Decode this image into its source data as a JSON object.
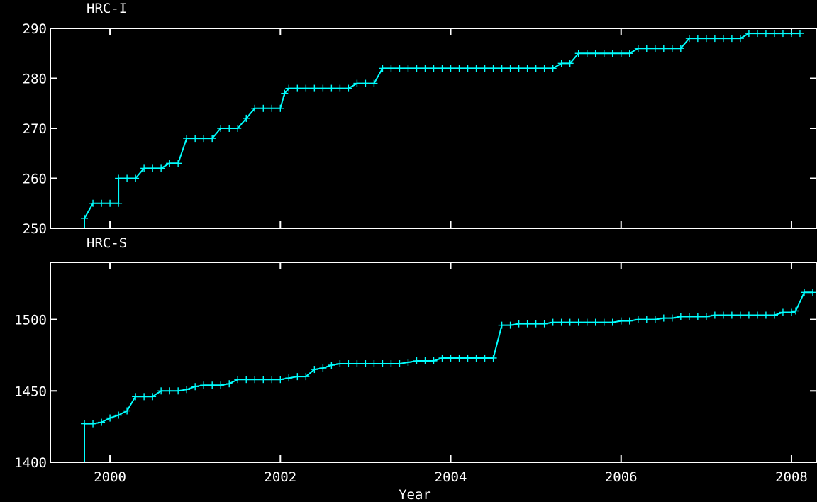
{
  "colors": {
    "background": "#000000",
    "axes": "#ffffff",
    "series": "#00ffff"
  },
  "chart_data": [
    {
      "type": "line",
      "title": "HRC-I",
      "xlabel": "",
      "ylabel": "",
      "xlim": [
        1999.3,
        2008.3
      ],
      "ylim": [
        250,
        290
      ],
      "yticks": [
        250,
        260,
        270,
        280,
        290
      ],
      "xticks": [
        2000,
        2002,
        2004,
        2006,
        2008
      ],
      "xtick_labels": [
        "",
        "",
        "",
        "",
        ""
      ],
      "grid": false,
      "marker": "plus",
      "series": [
        {
          "color": "#00ffff",
          "points": [
            [
              1999.7,
              250
            ],
            [
              1999.7,
              252
            ],
            [
              1999.8,
              255
            ],
            [
              1999.9,
              255
            ],
            [
              2000.0,
              255
            ],
            [
              2000.1,
              255
            ],
            [
              2000.1,
              260
            ],
            [
              2000.2,
              260
            ],
            [
              2000.3,
              260
            ],
            [
              2000.4,
              262
            ],
            [
              2000.5,
              262
            ],
            [
              2000.6,
              262
            ],
            [
              2000.7,
              263
            ],
            [
              2000.8,
              263
            ],
            [
              2000.9,
              268
            ],
            [
              2001.0,
              268
            ],
            [
              2001.1,
              268
            ],
            [
              2001.2,
              268
            ],
            [
              2001.3,
              270
            ],
            [
              2001.4,
              270
            ],
            [
              2001.5,
              270
            ],
            [
              2001.6,
              272
            ],
            [
              2001.7,
              274
            ],
            [
              2001.8,
              274
            ],
            [
              2001.9,
              274
            ],
            [
              2002.0,
              274
            ],
            [
              2002.05,
              277
            ],
            [
              2002.1,
              278
            ],
            [
              2002.2,
              278
            ],
            [
              2002.3,
              278
            ],
            [
              2002.4,
              278
            ],
            [
              2002.5,
              278
            ],
            [
              2002.6,
              278
            ],
            [
              2002.7,
              278
            ],
            [
              2002.8,
              278
            ],
            [
              2002.9,
              279
            ],
            [
              2003.0,
              279
            ],
            [
              2003.1,
              279
            ],
            [
              2003.2,
              282
            ],
            [
              2003.3,
              282
            ],
            [
              2003.4,
              282
            ],
            [
              2003.5,
              282
            ],
            [
              2003.6,
              282
            ],
            [
              2003.7,
              282
            ],
            [
              2003.8,
              282
            ],
            [
              2003.9,
              282
            ],
            [
              2004.0,
              282
            ],
            [
              2004.1,
              282
            ],
            [
              2004.2,
              282
            ],
            [
              2004.3,
              282
            ],
            [
              2004.4,
              282
            ],
            [
              2004.5,
              282
            ],
            [
              2004.6,
              282
            ],
            [
              2004.7,
              282
            ],
            [
              2004.8,
              282
            ],
            [
              2004.9,
              282
            ],
            [
              2005.0,
              282
            ],
            [
              2005.1,
              282
            ],
            [
              2005.2,
              282
            ],
            [
              2005.3,
              283
            ],
            [
              2005.4,
              283
            ],
            [
              2005.5,
              285
            ],
            [
              2005.6,
              285
            ],
            [
              2005.7,
              285
            ],
            [
              2005.8,
              285
            ],
            [
              2005.9,
              285
            ],
            [
              2006.0,
              285
            ],
            [
              2006.1,
              285
            ],
            [
              2006.2,
              286
            ],
            [
              2006.3,
              286
            ],
            [
              2006.4,
              286
            ],
            [
              2006.5,
              286
            ],
            [
              2006.6,
              286
            ],
            [
              2006.7,
              286
            ],
            [
              2006.8,
              288
            ],
            [
              2006.9,
              288
            ],
            [
              2007.0,
              288
            ],
            [
              2007.1,
              288
            ],
            [
              2007.2,
              288
            ],
            [
              2007.3,
              288
            ],
            [
              2007.4,
              288
            ],
            [
              2007.5,
              289
            ],
            [
              2007.6,
              289
            ],
            [
              2007.7,
              289
            ],
            [
              2007.8,
              289
            ],
            [
              2007.9,
              289
            ],
            [
              2008.0,
              289
            ],
            [
              2008.1,
              289
            ]
          ]
        }
      ]
    },
    {
      "type": "line",
      "title": "HRC-S",
      "xlabel": "Year",
      "ylabel": "",
      "xlim": [
        1999.3,
        2008.3
      ],
      "ylim": [
        1400,
        1540
      ],
      "yticks": [
        1400,
        1450,
        1500
      ],
      "xticks": [
        2000,
        2002,
        2004,
        2006,
        2008
      ],
      "xtick_labels": [
        "2000",
        "2002",
        "2004",
        "2006",
        "2008"
      ],
      "grid": false,
      "marker": "plus",
      "series": [
        {
          "color": "#00ffff",
          "points": [
            [
              1999.7,
              1400
            ],
            [
              1999.7,
              1427
            ],
            [
              1999.8,
              1427
            ],
            [
              1999.9,
              1428
            ],
            [
              2000.0,
              1431
            ],
            [
              2000.1,
              1433
            ],
            [
              2000.2,
              1436
            ],
            [
              2000.3,
              1446
            ],
            [
              2000.4,
              1446
            ],
            [
              2000.5,
              1446
            ],
            [
              2000.6,
              1450
            ],
            [
              2000.7,
              1450
            ],
            [
              2000.8,
              1450
            ],
            [
              2000.9,
              1451
            ],
            [
              2001.0,
              1453
            ],
            [
              2001.1,
              1454
            ],
            [
              2001.2,
              1454
            ],
            [
              2001.3,
              1454
            ],
            [
              2001.4,
              1455
            ],
            [
              2001.5,
              1458
            ],
            [
              2001.6,
              1458
            ],
            [
              2001.7,
              1458
            ],
            [
              2001.8,
              1458
            ],
            [
              2001.9,
              1458
            ],
            [
              2002.0,
              1458
            ],
            [
              2002.1,
              1459
            ],
            [
              2002.2,
              1460
            ],
            [
              2002.3,
              1460
            ],
            [
              2002.4,
              1465
            ],
            [
              2002.5,
              1466
            ],
            [
              2002.6,
              1468
            ],
            [
              2002.7,
              1469
            ],
            [
              2002.8,
              1469
            ],
            [
              2002.9,
              1469
            ],
            [
              2003.0,
              1469
            ],
            [
              2003.1,
              1469
            ],
            [
              2003.2,
              1469
            ],
            [
              2003.3,
              1469
            ],
            [
              2003.4,
              1469
            ],
            [
              2003.5,
              1470
            ],
            [
              2003.6,
              1471
            ],
            [
              2003.7,
              1471
            ],
            [
              2003.8,
              1471
            ],
            [
              2003.9,
              1473
            ],
            [
              2004.0,
              1473
            ],
            [
              2004.1,
              1473
            ],
            [
              2004.2,
              1473
            ],
            [
              2004.3,
              1473
            ],
            [
              2004.4,
              1473
            ],
            [
              2004.5,
              1473
            ],
            [
              2004.6,
              1496
            ],
            [
              2004.7,
              1496
            ],
            [
              2004.8,
              1497
            ],
            [
              2004.9,
              1497
            ],
            [
              2005.0,
              1497
            ],
            [
              2005.1,
              1497
            ],
            [
              2005.2,
              1498
            ],
            [
              2005.3,
              1498
            ],
            [
              2005.4,
              1498
            ],
            [
              2005.5,
              1498
            ],
            [
              2005.6,
              1498
            ],
            [
              2005.7,
              1498
            ],
            [
              2005.8,
              1498
            ],
            [
              2005.9,
              1498
            ],
            [
              2006.0,
              1499
            ],
            [
              2006.1,
              1499
            ],
            [
              2006.2,
              1500
            ],
            [
              2006.3,
              1500
            ],
            [
              2006.4,
              1500
            ],
            [
              2006.5,
              1501
            ],
            [
              2006.6,
              1501
            ],
            [
              2006.7,
              1502
            ],
            [
              2006.8,
              1502
            ],
            [
              2006.9,
              1502
            ],
            [
              2007.0,
              1502
            ],
            [
              2007.1,
              1503
            ],
            [
              2007.2,
              1503
            ],
            [
              2007.3,
              1503
            ],
            [
              2007.4,
              1503
            ],
            [
              2007.5,
              1503
            ],
            [
              2007.6,
              1503
            ],
            [
              2007.7,
              1503
            ],
            [
              2007.8,
              1503
            ],
            [
              2007.9,
              1505
            ],
            [
              2008.0,
              1505
            ],
            [
              2008.05,
              1506
            ],
            [
              2008.15,
              1519
            ],
            [
              2008.25,
              1519
            ]
          ]
        }
      ]
    }
  ]
}
